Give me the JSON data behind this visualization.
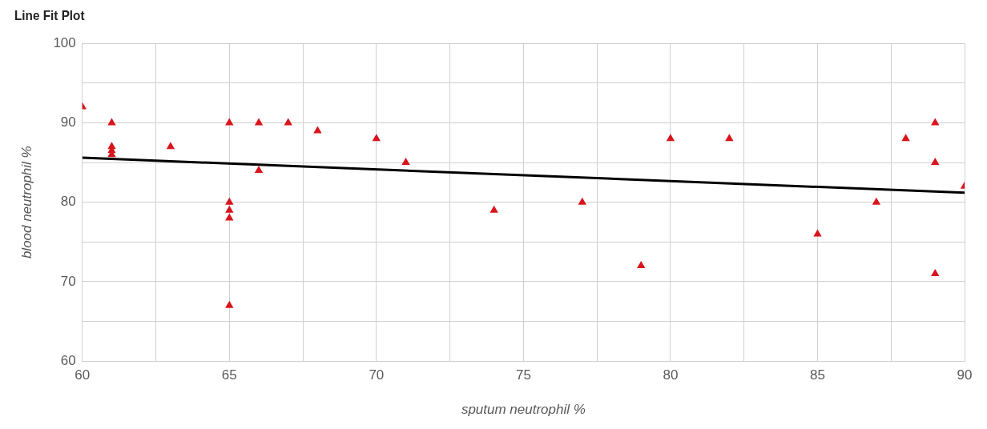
{
  "chart_data": {
    "type": "scatter",
    "title": "Line Fit Plot",
    "xlabel": "sputum neutrophil %",
    "ylabel": "blood neutrophil %",
    "xlim": [
      60,
      90
    ],
    "ylim": [
      60,
      100
    ],
    "xticks": [
      60,
      {
        "value": 62.5,
        "label": null
      },
      65,
      {
        "value": 67.5,
        "label": null
      },
      70,
      {
        "value": 72.5,
        "label": null
      },
      75,
      {
        "value": 77.5,
        "label": null
      },
      80,
      {
        "value": 82.5,
        "label": null
      },
      85,
      {
        "value": 87.5,
        "label": null
      },
      90
    ],
    "yticks": [
      60,
      {
        "value": 65,
        "label": null
      },
      70,
      {
        "value": 75,
        "label": null
      },
      80,
      {
        "value": 85,
        "label": null
      },
      90,
      {
        "value": 95,
        "label": null
      },
      100
    ],
    "grid": true,
    "legend": false,
    "marker": "triangle",
    "series": [
      {
        "color": "#d9141c",
        "x": [
          60,
          61,
          61,
          61,
          61,
          63,
          65,
          65,
          65,
          65,
          65,
          66,
          66,
          67,
          68,
          70,
          71,
          74,
          77,
          79,
          80,
          82,
          85,
          87,
          88,
          89,
          89,
          89,
          90
        ],
        "values": [
          92,
          90,
          87,
          86.5,
          86,
          87,
          90,
          80,
          79,
          78,
          67,
          90,
          84,
          90,
          89,
          88,
          85,
          79,
          80,
          72,
          88,
          88,
          76,
          80,
          88,
          90,
          85,
          71,
          82
        ]
      },
      {
        "type": "line",
        "color": "#000000",
        "marker": "none",
        "line_style": "solid",
        "x": [
          60,
          90
        ],
        "values": [
          85.6,
          81.2
        ]
      }
    ]
  }
}
